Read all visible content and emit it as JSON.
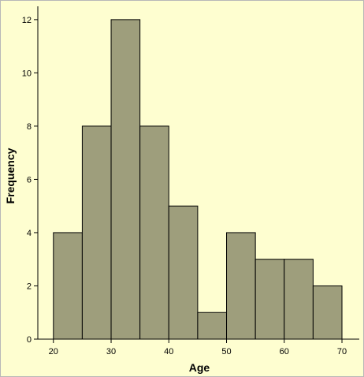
{
  "chart_data": {
    "type": "bar",
    "title": "",
    "xlabel": "Age",
    "ylabel": "Frequency",
    "bin_edges": [
      20,
      25,
      30,
      35,
      40,
      45,
      50,
      55,
      60,
      65,
      70
    ],
    "values": [
      4,
      8,
      12,
      8,
      5,
      1,
      4,
      3,
      3,
      2
    ],
    "xlim": [
      17.3,
      73
    ],
    "ylim": [
      0,
      12.5
    ],
    "x_ticks": [
      20,
      30,
      40,
      50,
      60,
      70
    ],
    "y_ticks": [
      0,
      2,
      4,
      6,
      8,
      10,
      12
    ],
    "grid": false,
    "legend": "none"
  },
  "colors": {
    "background": "#ffffcc",
    "bar_fill": "#9e9e7c",
    "bar_edge": "#000000"
  }
}
